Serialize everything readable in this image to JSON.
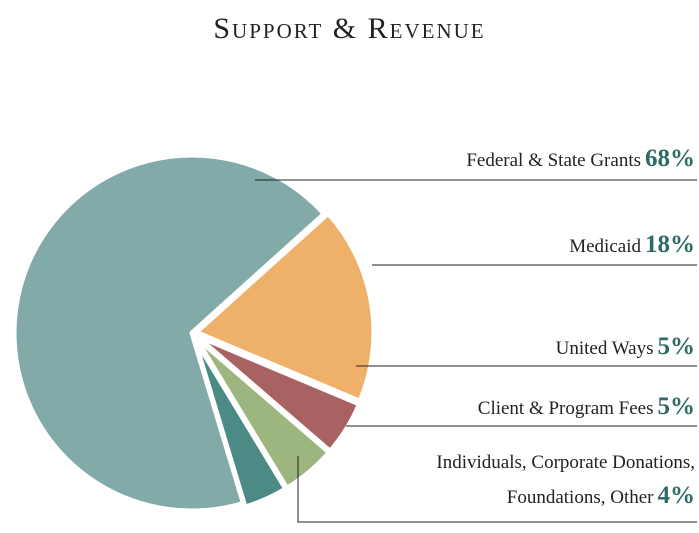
{
  "chart_data": {
    "type": "pie",
    "title": "Support & Revenue",
    "categories": [
      "Federal & State Grants",
      "Medicaid",
      "United Ways",
      "Client & Program Fees",
      "Individuals, Corporate Donations, Foundations, Other"
    ],
    "values": [
      68,
      18,
      5,
      5,
      4
    ],
    "value_labels": [
      "68%",
      "18%",
      "5%",
      "5%",
      "4%"
    ],
    "colors": [
      "#82aaa8",
      "#efb16a",
      "#a86262",
      "#9db57f",
      "#4b8a85"
    ]
  }
}
